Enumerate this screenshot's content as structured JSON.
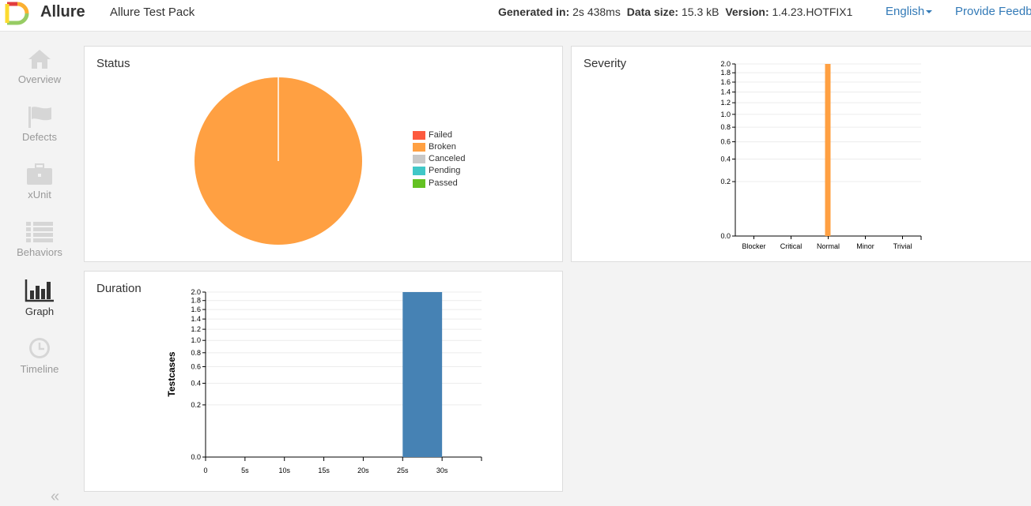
{
  "header": {
    "brand": "Allure",
    "report_name": "Allure Test Pack",
    "generated_label": "Generated in:",
    "generated_value": "2s 438ms",
    "size_label": "Data size:",
    "size_value": "15.3 kB",
    "version_label": "Version:",
    "version_value": "1.4.23.HOTFIX1",
    "language": "English",
    "feedback": "Provide Feedback",
    "logo_colors": [
      "#e23d3d",
      "#fbb031",
      "#97cc64",
      "#fcdb2f"
    ]
  },
  "sidebar": {
    "items": [
      {
        "label": "Overview",
        "icon": "home-icon"
      },
      {
        "label": "Defects",
        "icon": "flag-icon"
      },
      {
        "label": "xUnit",
        "icon": "briefcase-icon"
      },
      {
        "label": "Behaviors",
        "icon": "list-icon"
      },
      {
        "label": "Graph",
        "icon": "bar-chart-icon",
        "active": true
      },
      {
        "label": "Timeline",
        "icon": "clock-icon"
      }
    ],
    "collapse": "«"
  },
  "status_card": {
    "title": "Status",
    "legend": [
      {
        "label": "Failed",
        "color": "#fd5a3e"
      },
      {
        "label": "Broken",
        "color": "#ffa042"
      },
      {
        "label": "Canceled",
        "color": "#c8c8c8"
      },
      {
        "label": "Pending",
        "color": "#40c7c7"
      },
      {
        "label": "Passed",
        "color": "#63c122"
      }
    ]
  },
  "severity_card": {
    "title": "Severity"
  },
  "duration_card": {
    "title": "Duration"
  },
  "chart_data": [
    {
      "type": "pie",
      "title": "Status",
      "categories": [
        "Failed",
        "Broken",
        "Canceled",
        "Pending",
        "Passed"
      ],
      "values": [
        0,
        2,
        0,
        0,
        0
      ],
      "colors": [
        "#fd5a3e",
        "#ffa042",
        "#c8c8c8",
        "#40c7c7",
        "#63c122"
      ],
      "legend": "right"
    },
    {
      "type": "bar",
      "title": "Severity",
      "categories": [
        "Blocker",
        "Critical",
        "Normal",
        "Minor",
        "Trivial"
      ],
      "values": [
        0,
        0,
        2,
        0,
        0
      ],
      "ylim": [
        0,
        2
      ],
      "yscale": "sqrt",
      "yticks": [
        "0.0",
        "0.2",
        "0.4",
        "0.6",
        "0.8",
        "1.0",
        "1.2",
        "1.4",
        "1.6",
        "1.8",
        "2.0"
      ],
      "color": "#ffa042",
      "grid": true
    },
    {
      "type": "bar",
      "title": "Duration",
      "ylabel": "Testcases",
      "xticks": [
        "0",
        "5s",
        "10s",
        "15s",
        "20s",
        "25s",
        "30s"
      ],
      "xlim": [
        0,
        35
      ],
      "bins": [
        {
          "x0": 25,
          "x1": 30,
          "value": 2
        }
      ],
      "ylim": [
        0,
        2
      ],
      "yscale": "sqrt",
      "yticks": [
        "0.0",
        "0.2",
        "0.4",
        "0.6",
        "0.8",
        "1.0",
        "1.2",
        "1.4",
        "1.6",
        "1.8",
        "2.0"
      ],
      "color": "#4682b4",
      "grid": true
    }
  ]
}
